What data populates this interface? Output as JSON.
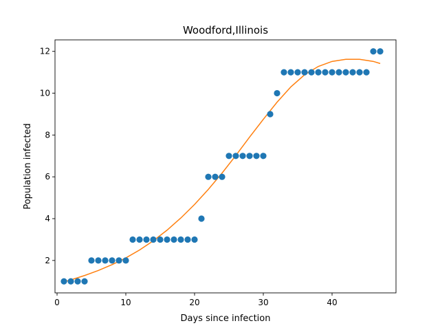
{
  "chart_data": {
    "type": "scatter",
    "title": "Woodford,Illinois",
    "xlabel": "Days since infection",
    "ylabel": "Population infected",
    "xlim": [
      -0.3,
      49.3
    ],
    "ylim": [
      0.45,
      12.55
    ],
    "xticks": [
      0,
      10,
      20,
      30,
      40
    ],
    "yticks": [
      2,
      4,
      6,
      8,
      10,
      12
    ],
    "grid": false,
    "series": [
      {
        "kind": "points",
        "color": "#1f77b4",
        "x": [
          1,
          2,
          3,
          4,
          5,
          6,
          7,
          8,
          9,
          10,
          11,
          12,
          13,
          14,
          15,
          16,
          17,
          18,
          19,
          20,
          21,
          22,
          23,
          24,
          25,
          26,
          27,
          28,
          29,
          30,
          31,
          32,
          33,
          34,
          35,
          36,
          37,
          38,
          39,
          40,
          41,
          42,
          43,
          44,
          45,
          46,
          47
        ],
        "y": [
          1,
          1,
          1,
          1,
          2,
          2,
          2,
          2,
          2,
          2,
          3,
          3,
          3,
          3,
          3,
          3,
          3,
          3,
          3,
          3,
          4,
          6,
          6,
          6,
          7,
          7,
          7,
          7,
          7,
          7,
          9,
          10,
          11,
          11,
          11,
          11,
          11,
          11,
          11,
          11,
          11,
          11,
          11,
          11,
          11,
          12,
          12
        ]
      },
      {
        "kind": "fit-curve",
        "color": "#ff7f0e",
        "x": [
          1,
          2,
          4,
          6,
          8,
          10,
          12,
          14,
          16,
          18,
          20,
          22,
          24,
          26,
          28,
          30,
          32,
          34,
          36,
          38,
          40,
          42,
          44,
          46,
          47
        ],
        "y": [
          0.98,
          1.07,
          1.28,
          1.52,
          1.8,
          2.12,
          2.5,
          2.94,
          3.45,
          4.03,
          4.68,
          5.4,
          6.18,
          7.02,
          7.9,
          8.75,
          9.57,
          10.3,
          10.88,
          11.28,
          11.52,
          11.62,
          11.62,
          11.52,
          11.42
        ]
      }
    ]
  }
}
